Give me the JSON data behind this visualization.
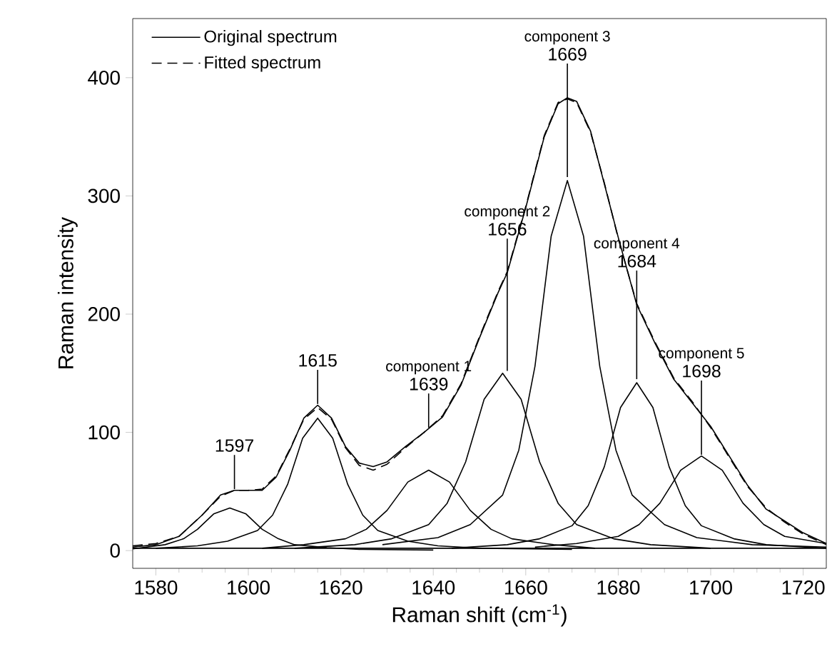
{
  "chart_data": {
    "type": "line",
    "xlabel": "Raman shift (cm$^{-1}$)",
    "ylabel": "Raman intensity",
    "xlim": [
      1575,
      1725
    ],
    "ylim": [
      -15,
      450
    ],
    "xticks": [
      1580,
      1600,
      1620,
      1640,
      1660,
      1680,
      1700,
      1720
    ],
    "yticks": [
      0,
      100,
      200,
      300,
      400
    ],
    "legend": "top left",
    "series": [
      {
        "name": "Original spectrum",
        "color": "#000000",
        "line_style": "solid",
        "x": [
          1575,
          1580,
          1585,
          1590,
          1594,
          1597,
          1600,
          1603,
          1606,
          1609,
          1612,
          1615,
          1618,
          1621,
          1624,
          1627,
          1630,
          1634,
          1638,
          1642,
          1646,
          1650,
          1654,
          1656,
          1660,
          1664,
          1667,
          1669,
          1671,
          1674,
          1677,
          1680,
          1684,
          1688,
          1692,
          1696,
          1700,
          1704,
          1708,
          1712,
          1716,
          1720,
          1725
        ],
        "values": [
          3,
          5,
          12,
          30,
          47,
          51,
          51,
          51,
          62,
          85,
          112,
          123,
          112,
          88,
          74,
          71,
          75,
          88,
          100,
          113,
          140,
          180,
          218,
          235,
          290,
          350,
          378,
          383,
          380,
          355,
          310,
          265,
          208,
          175,
          145,
          125,
          105,
          80,
          55,
          35,
          25,
          15,
          6
        ]
      },
      {
        "name": "Fitted spectrum",
        "color": "#000000",
        "line_style": "dashed",
        "x": [
          1575,
          1580,
          1585,
          1590,
          1594,
          1597,
          1600,
          1603,
          1606,
          1609,
          1612,
          1615,
          1618,
          1621,
          1624,
          1627,
          1630,
          1634,
          1638,
          1642,
          1646,
          1650,
          1654,
          1656,
          1660,
          1664,
          1667,
          1669,
          1671,
          1674,
          1677,
          1680,
          1684,
          1688,
          1692,
          1696,
          1700,
          1704,
          1708,
          1712,
          1716,
          1720,
          1725
        ],
        "values": [
          4,
          6,
          12,
          30,
          46,
          51,
          51,
          52,
          63,
          86,
          111,
          121,
          111,
          87,
          72,
          68,
          73,
          87,
          100,
          114,
          141,
          181,
          219,
          236,
          291,
          351,
          379,
          382,
          379,
          354,
          311,
          264,
          209,
          176,
          146,
          126,
          104,
          79,
          54,
          36,
          24,
          14,
          5
        ]
      },
      {
        "color": "#000000",
        "line_style": "solid",
        "x": [
          1575,
          1582,
          1586,
          1589,
          1592.5,
          1596,
          1599.5,
          1603,
          1606.5,
          1610,
          1617,
          1624,
          1640
        ],
        "values": [
          1.5,
          5,
          10,
          18,
          31,
          36,
          31,
          18,
          10,
          5,
          2.5,
          1,
          0.5
        ]
      },
      {
        "color": "#000000",
        "line_style": "solid",
        "x": [
          1580,
          1589,
          1595.5,
          1602,
          1605.25,
          1608.5,
          1611.75,
          1615,
          1618.25,
          1621.5,
          1624.75,
          1628,
          1634.5,
          1641,
          1650,
          1670
        ],
        "values": [
          2,
          4,
          8,
          17,
          30,
          56,
          95,
          112,
          95,
          56,
          30,
          17,
          8,
          4,
          2,
          1
        ]
      },
      {
        "color": "#000000",
        "line_style": "solid",
        "x": [
          1603,
          1612,
          1621,
          1625.5,
          1630,
          1634.5,
          1639,
          1643.5,
          1648,
          1652.5,
          1657,
          1666,
          1675
        ],
        "values": [
          2,
          5,
          10,
          18,
          34,
          58,
          68,
          58,
          34,
          18,
          10,
          5,
          2
        ]
      },
      {
        "color": "#000000",
        "line_style": "solid",
        "x": [
          1610,
          1623,
          1631,
          1639,
          1643,
          1647,
          1651,
          1655,
          1659,
          1663,
          1667,
          1671,
          1679,
          1687,
          1700
        ],
        "values": [
          2,
          5,
          10,
          22,
          40,
          75,
          128,
          150,
          128,
          75,
          40,
          22,
          10,
          5,
          2
        ]
      },
      {
        "color": "#000000",
        "line_style": "solid",
        "x": [
          1629,
          1641,
          1648,
          1655,
          1658.5,
          1662,
          1665.5,
          1669,
          1672.5,
          1676,
          1679.5,
          1683,
          1690,
          1697,
          1709,
          1725
        ],
        "values": [
          5,
          11,
          22,
          47,
          85,
          156,
          266,
          313,
          266,
          156,
          85,
          47,
          22,
          11,
          5,
          3
        ]
      },
      {
        "color": "#000000",
        "line_style": "solid",
        "x": [
          1644,
          1656,
          1663,
          1670,
          1673.5,
          1677,
          1680.5,
          1684,
          1687.5,
          1691,
          1694.5,
          1698,
          1705,
          1712,
          1725
        ],
        "values": [
          2,
          5,
          10,
          21,
          38,
          71,
          121,
          142,
          121,
          71,
          38,
          21,
          10,
          5,
          2
        ]
      },
      {
        "color": "#000000",
        "line_style": "solid",
        "x": [
          1662,
          1671,
          1680,
          1684.5,
          1689,
          1693.5,
          1698,
          1702.5,
          1707,
          1711.5,
          1716,
          1725
        ],
        "values": [
          3,
          6,
          12,
          22,
          40,
          68,
          80,
          68,
          40,
          22,
          12,
          6
        ]
      },
      {
        "color": "#000000",
        "line_style": "solid",
        "x": [
          1575,
          1725
        ],
        "values": [
          2,
          2
        ]
      }
    ],
    "annotations": [
      {
        "text": "1597",
        "x": 1597,
        "y": 52
      },
      {
        "text": "1615",
        "x": 1615,
        "y": 124
      },
      {
        "text": "1639",
        "x": 1639,
        "y": 104
      },
      {
        "text": "component 1",
        "x": 1639,
        "y": 104
      },
      {
        "text": "1656",
        "x": 1656,
        "y": 152
      },
      {
        "text": "component 2",
        "x": 1656,
        "y": 152
      },
      {
        "text": "1669",
        "x": 1669,
        "y": 316
      },
      {
        "text": "component 3",
        "x": 1669,
        "y": 316
      },
      {
        "text": "1684",
        "x": 1684,
        "y": 145
      },
      {
        "text": "component 4",
        "x": 1684,
        "y": 145
      },
      {
        "text": "1698",
        "x": 1698,
        "y": 81
      },
      {
        "text": "component 5",
        "x": 1698,
        "y": 81
      }
    ]
  }
}
